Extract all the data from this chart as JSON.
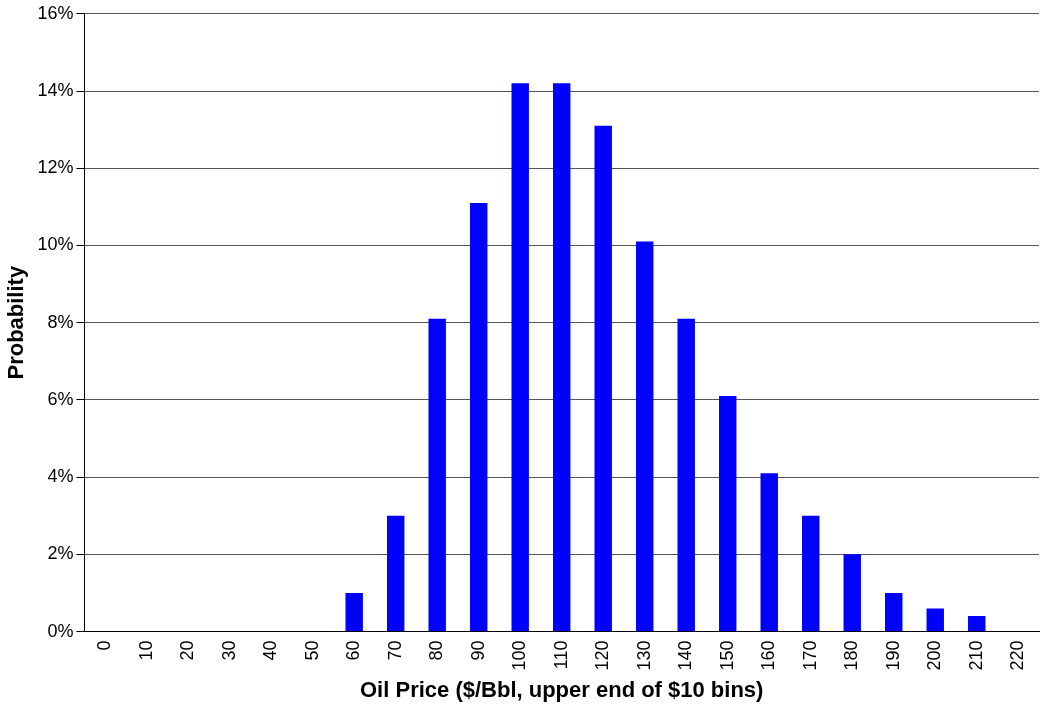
{
  "chart_data": {
    "type": "bar",
    "xlabel": "Oil Price ($/Bbl, upper end of $10 bins)",
    "ylabel": "Probability",
    "categories": [
      "0",
      "10",
      "20",
      "30",
      "40",
      "50",
      "60",
      "70",
      "80",
      "90",
      "100",
      "110",
      "120",
      "130",
      "140",
      "150",
      "160",
      "170",
      "180",
      "190",
      "200",
      "210",
      "220"
    ],
    "values": [
      0,
      0,
      0,
      0,
      0,
      0,
      1,
      3,
      8.1,
      11.1,
      14.2,
      14.2,
      13.1,
      10.1,
      8.1,
      6.1,
      4.1,
      3,
      2,
      1,
      0.6,
      0.4,
      0
    ],
    "color": "#0000ff",
    "ylim": [
      0,
      16
    ],
    "yticks": [
      {
        "value": 0,
        "label": "0%"
      },
      {
        "value": 2,
        "label": "2%"
      },
      {
        "value": 4,
        "label": "4%"
      },
      {
        "value": 6,
        "label": "6%"
      },
      {
        "value": 8,
        "label": "8%"
      },
      {
        "value": 10,
        "label": "10%"
      },
      {
        "value": 12,
        "label": "12%"
      },
      {
        "value": 14,
        "label": "14%"
      },
      {
        "value": 16,
        "label": "16%"
      }
    ],
    "grid": "y",
    "legend": false
  }
}
